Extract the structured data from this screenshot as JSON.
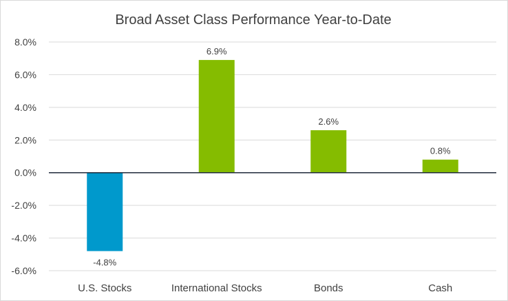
{
  "chart_data": {
    "type": "bar",
    "title": "Broad Asset Class Performance Year-to-Date",
    "xlabel": "",
    "ylabel": "",
    "categories": [
      "U.S. Stocks",
      "International Stocks",
      "Bonds",
      "Cash"
    ],
    "values": [
      -4.8,
      6.9,
      2.6,
      0.8
    ],
    "data_labels": [
      "-4.8%",
      "6.9%",
      "2.6%",
      "0.8%"
    ],
    "bar_colors": [
      "#0099cc",
      "#85bc00",
      "#85bc00",
      "#85bc00"
    ],
    "ylim": [
      -6,
      8
    ],
    "yticks": [
      8,
      6,
      4,
      2,
      0,
      -2,
      -4,
      -6
    ],
    "ytick_labels": [
      "8.0%",
      "6.0%",
      "4.0%",
      "2.0%",
      "0.0%",
      "-2.0%",
      "-4.0%",
      "-6.0%"
    ],
    "grid": true,
    "legend": "none"
  }
}
